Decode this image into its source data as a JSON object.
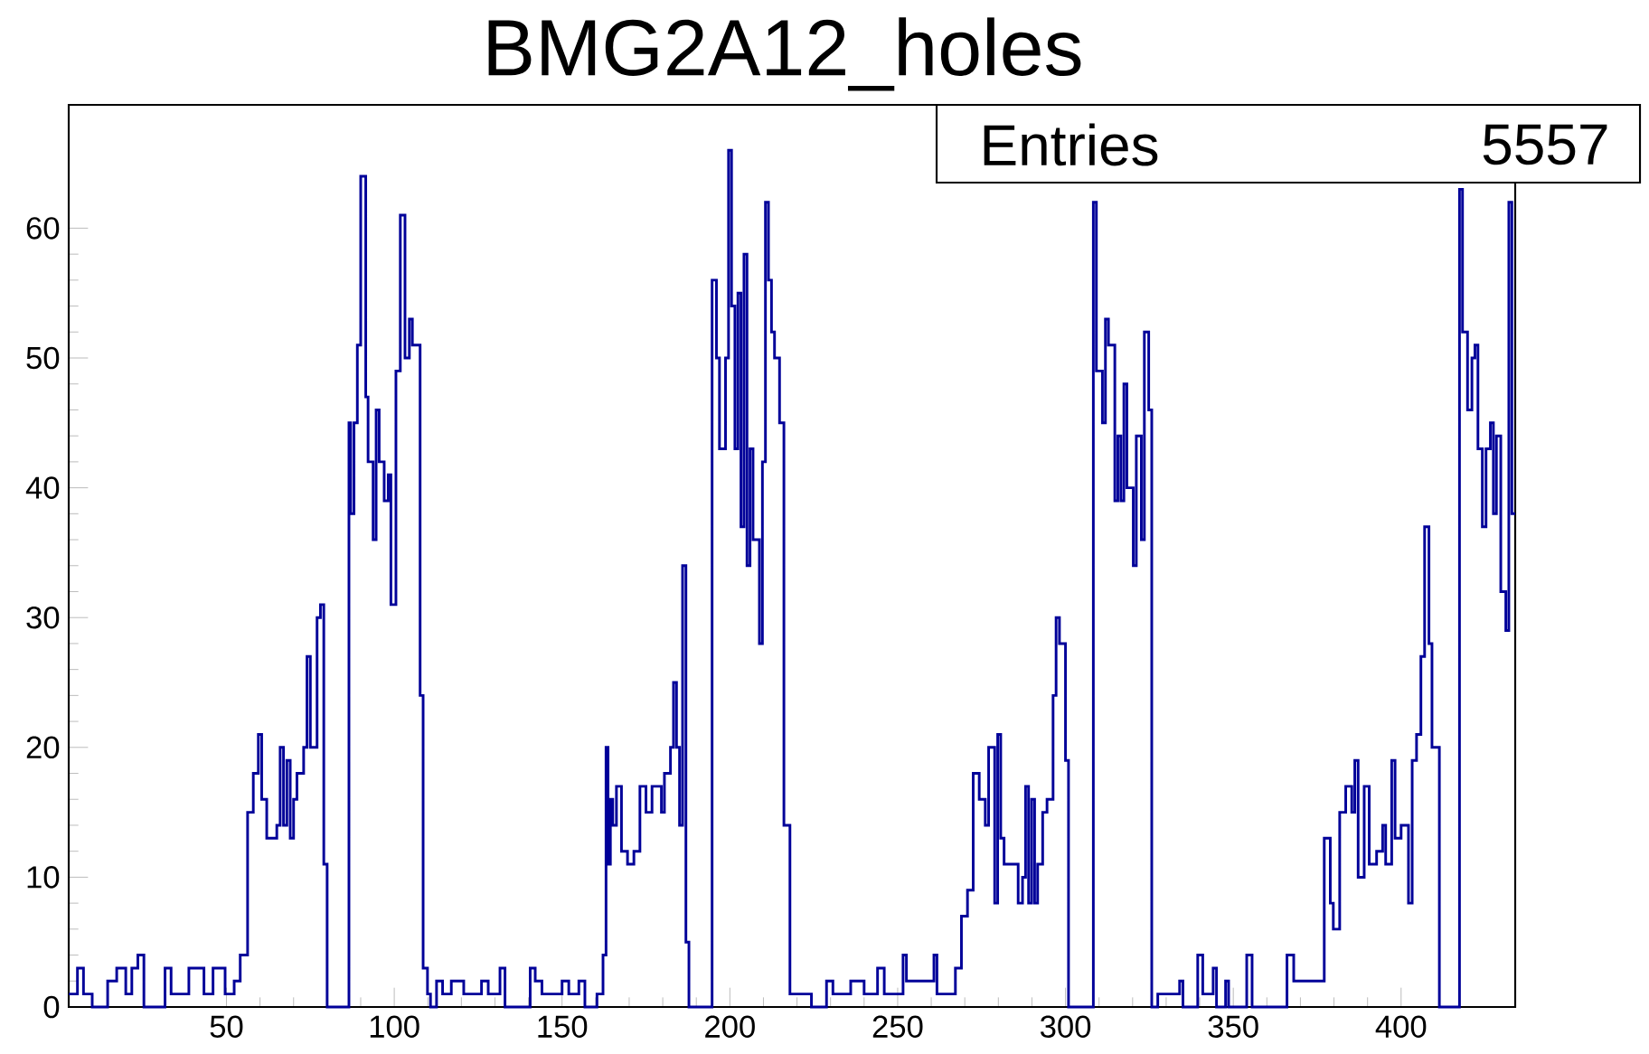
{
  "chart_data": {
    "type": "histogram",
    "title": "BMG2A12_holes",
    "color": "#000099",
    "bins": [
      3,
      5.6,
      7.4,
      10,
      14.6,
      17.3,
      20,
      21.8,
      23.6,
      25.4,
      31.7,
      33.5,
      38.8,
      43.3,
      46,
      49.6,
      52.3,
      54.1,
      56.3,
      58,
      59.5,
      60.5,
      62,
      65,
      66,
      67,
      68,
      69,
      70,
      71,
      73,
      74,
      75,
      77,
      78,
      79,
      80,
      86.5,
      87,
      88,
      89,
      90,
      91.5,
      92.2,
      93.7,
      94.6,
      95.5,
      97,
      98.2,
      99,
      100.5,
      101.8,
      103.2,
      104.5,
      105.4,
      107.7,
      108.6,
      109.9,
      110.8,
      112.6,
      114.4,
      117,
      120.7,
      126,
      128,
      131.5,
      133,
      140.5,
      142,
      144,
      150,
      152,
      155,
      156.8,
      160.4,
      162.2,
      163.1,
      163.7,
      164.4,
      165.1,
      166.2,
      167.7,
      169.5,
      171.4,
      173.2,
      175,
      176.8,
      179.6,
      180.5,
      182.3,
      183.2,
      184.1,
      185,
      185.9,
      186.9,
      187.8,
      194.7,
      196,
      196.9,
      198.7,
      199.6,
      200.5,
      201.5,
      202.4,
      203.3,
      204.2,
      205.1,
      206,
      206.9,
      208.8,
      209.7,
      210.6,
      211.5,
      212.4,
      213.3,
      214.8,
      216.1,
      217.9,
      224.3,
      228.8,
      230.7,
      236,
      240,
      244,
      246,
      251.6,
      252.6,
      260.8,
      261.7,
      267.2,
      269,
      270.8,
      272.5,
      274.3,
      276.1,
      277.1,
      278.9,
      279.8,
      280.7,
      281.7,
      285.9,
      287.2,
      288.1,
      289,
      289.9,
      290.8,
      291.7,
      293.2,
      294.5,
      296.3,
      297.2,
      298.2,
      300,
      300.9,
      308.3,
      309.2,
      311,
      311.9,
      312.8,
      314.7,
      315.6,
      316.5,
      317.4,
      318.3,
      320.2,
      321.1,
      322.6,
      323.5,
      324.8,
      325.7,
      327.5,
      334,
      335,
      339.4,
      340.9,
      344,
      345,
      347.7,
      348.6,
      354,
      355.6,
      366,
      368,
      377.1,
      378.9,
      379.8,
      381.7,
      383.5,
      385.3,
      386.2,
      387.2,
      389,
      390.5,
      392.7,
      394.5,
      395.4,
      397.2,
      398.2,
      400,
      402.2,
      403.3,
      404.6,
      405.9,
      407,
      408.3,
      409.2,
      411.4,
      417.4,
      418.3,
      419.8,
      421.1,
      422,
      422.9,
      424.2,
      425.3,
      426.6,
      427.5,
      428.4,
      429.7,
      431.2,
      432.1,
      433,
      434
    ],
    "values": [
      1,
      3,
      1,
      0,
      2,
      3,
      1,
      3,
      4,
      0,
      3,
      1,
      3,
      1,
      3,
      1,
      2,
      4,
      15,
      18,
      21,
      16,
      13,
      14,
      20,
      14,
      19,
      13,
      16,
      18,
      20,
      27,
      20,
      30,
      31,
      11,
      0,
      45,
      38,
      45,
      51,
      64,
      47,
      42,
      36,
      46,
      42,
      39,
      41,
      31,
      49,
      61,
      50,
      53,
      51,
      24,
      3,
      1,
      0,
      2,
      1,
      2,
      1,
      2,
      1,
      3,
      0,
      3,
      2,
      1,
      2,
      1,
      2,
      0,
      1,
      4,
      20,
      11,
      16,
      14,
      17,
      12,
      11,
      12,
      17,
      15,
      17,
      15,
      18,
      20,
      25,
      20,
      14,
      34,
      5,
      0,
      56,
      50,
      43,
      50,
      66,
      54,
      43,
      55,
      37,
      58,
      34,
      43,
      36,
      28,
      42,
      62,
      56,
      52,
      50,
      45,
      14,
      1,
      0,
      2,
      1,
      2,
      1,
      3,
      1,
      4,
      2,
      4,
      1,
      3,
      7,
      9,
      18,
      16,
      14,
      20,
      8,
      21,
      13,
      11,
      8,
      10,
      17,
      8,
      16,
      8,
      11,
      15,
      16,
      24,
      30,
      28,
      19,
      0,
      62,
      49,
      45,
      53,
      51,
      39,
      44,
      39,
      48,
      40,
      34,
      44,
      36,
      52,
      46,
      0,
      1,
      2,
      0,
      4,
      1,
      3,
      0,
      2,
      0,
      4,
      0,
      4,
      2,
      13,
      8,
      6,
      15,
      17,
      15,
      19,
      10,
      17,
      11,
      12,
      14,
      11,
      19,
      13,
      14,
      8,
      19,
      21,
      27,
      37,
      28,
      20,
      0,
      63,
      52,
      46,
      50,
      51,
      43,
      37,
      43,
      45,
      38,
      44,
      32,
      29,
      62,
      38
    ],
    "xlim": [
      3,
      434
    ],
    "ylim": [
      0,
      69.5
    ],
    "xticks": [
      50,
      100,
      150,
      200,
      250,
      300,
      350,
      400
    ],
    "yticks": [
      0,
      10,
      20,
      30,
      40,
      50,
      60
    ],
    "annotations": [
      "Entries",
      "5557"
    ]
  }
}
